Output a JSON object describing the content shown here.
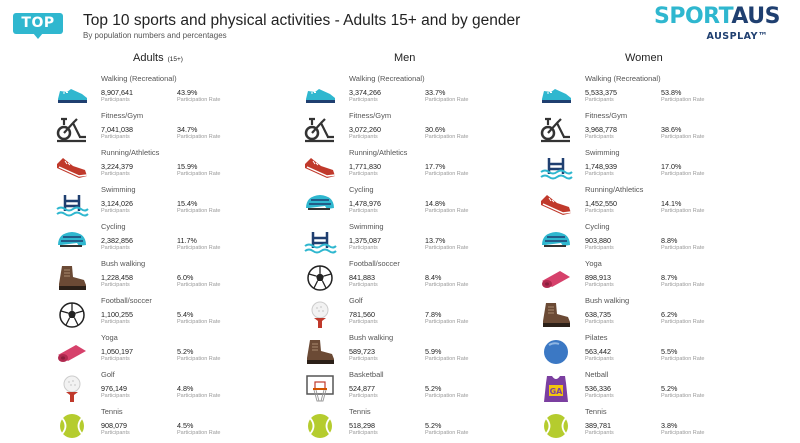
{
  "header": {
    "badge": "TOP 10",
    "title": "Top 10 sports and physical activities - Adults 15+ and by gender",
    "subtitle": "By population numbers and percentages",
    "logo_part1": "SPORT",
    "logo_part2": "AUS",
    "logo_sub": "AUSPLAY™"
  },
  "labels": {
    "participants": "Participants",
    "rate": "Participation Rate"
  },
  "columns": [
    {
      "heading": "Adults",
      "heading_suffix": "(15+)",
      "items": [
        {
          "name": "Walking (Recreational)",
          "participants": "8,907,641",
          "rate": "43.9%",
          "icon": "shoe-icon"
        },
        {
          "name": "Fitness/Gym",
          "participants": "7,041,038",
          "rate": "34.7%",
          "icon": "exercise-bike-icon"
        },
        {
          "name": "Running/Athletics",
          "participants": "3,224,379",
          "rate": "15.9%",
          "icon": "running-shoe-icon"
        },
        {
          "name": "Swimming",
          "participants": "3,124,026",
          "rate": "15.4%",
          "icon": "swimming-icon"
        },
        {
          "name": "Cycling",
          "participants": "2,382,856",
          "rate": "11.7%",
          "icon": "cycling-helmet-icon"
        },
        {
          "name": "Bush walking",
          "participants": "1,228,458",
          "rate": "6.0%",
          "icon": "hiking-boot-icon"
        },
        {
          "name": "Football/soccer",
          "participants": "1,100,255",
          "rate": "5.4%",
          "icon": "soccer-ball-icon"
        },
        {
          "name": "Yoga",
          "participants": "1,050,197",
          "rate": "5.2%",
          "icon": "yoga-mat-icon"
        },
        {
          "name": "Golf",
          "participants": "976,149",
          "rate": "4.8%",
          "icon": "golf-ball-icon"
        },
        {
          "name": "Tennis",
          "participants": "908,079",
          "rate": "4.5%",
          "icon": "tennis-ball-icon"
        }
      ]
    },
    {
      "heading": "Men",
      "heading_suffix": "",
      "items": [
        {
          "name": "Walking (Recreational)",
          "participants": "3,374,266",
          "rate": "33.7%",
          "icon": "shoe-icon"
        },
        {
          "name": "Fitness/Gym",
          "participants": "3,072,260",
          "rate": "30.6%",
          "icon": "exercise-bike-icon"
        },
        {
          "name": "Running/Athletics",
          "participants": "1,771,830",
          "rate": "17.7%",
          "icon": "running-shoe-icon"
        },
        {
          "name": "Cycling",
          "participants": "1,478,976",
          "rate": "14.8%",
          "icon": "cycling-helmet-icon"
        },
        {
          "name": "Swimming",
          "participants": "1,375,087",
          "rate": "13.7%",
          "icon": "swimming-icon"
        },
        {
          "name": "Football/soccer",
          "participants": "841,883",
          "rate": "8.4%",
          "icon": "soccer-ball-icon"
        },
        {
          "name": "Golf",
          "participants": "781,560",
          "rate": "7.8%",
          "icon": "golf-ball-icon"
        },
        {
          "name": "Bush walking",
          "participants": "589,723",
          "rate": "5.9%",
          "icon": "hiking-boot-icon"
        },
        {
          "name": "Basketball",
          "participants": "524,877",
          "rate": "5.2%",
          "icon": "basketball-hoop-icon"
        },
        {
          "name": "Tennis",
          "participants": "518,298",
          "rate": "5.2%",
          "icon": "tennis-ball-icon"
        }
      ]
    },
    {
      "heading": "Women",
      "heading_suffix": "",
      "items": [
        {
          "name": "Walking (Recreational)",
          "participants": "5,533,375",
          "rate": "53.8%",
          "icon": "shoe-icon"
        },
        {
          "name": "Fitness/Gym",
          "participants": "3,968,778",
          "rate": "38.6%",
          "icon": "exercise-bike-icon"
        },
        {
          "name": "Swimming",
          "participants": "1,748,939",
          "rate": "17.0%",
          "icon": "swimming-icon"
        },
        {
          "name": "Running/Athletics",
          "participants": "1,452,550",
          "rate": "14.1%",
          "icon": "running-shoe-icon"
        },
        {
          "name": "Cycling",
          "participants": "903,880",
          "rate": "8.8%",
          "icon": "cycling-helmet-icon"
        },
        {
          "name": "Yoga",
          "participants": "898,913",
          "rate": "8.7%",
          "icon": "yoga-mat-icon"
        },
        {
          "name": "Bush walking",
          "participants": "638,735",
          "rate": "6.2%",
          "icon": "hiking-boot-icon"
        },
        {
          "name": "Pilates",
          "participants": "563,442",
          "rate": "5.5%",
          "icon": "pilates-ball-icon"
        },
        {
          "name": "Netball",
          "participants": "536,336",
          "rate": "5.2%",
          "icon": "netball-bib-icon"
        },
        {
          "name": "Tennis",
          "participants": "389,781",
          "rate": "3.8%",
          "icon": "tennis-ball-icon"
        }
      ]
    }
  ],
  "colors": {
    "accent": "#2fb7cf",
    "navy": "#1f3f70",
    "red": "#c0392b",
    "pink": "#d6416b",
    "brown": "#6b4a35"
  }
}
